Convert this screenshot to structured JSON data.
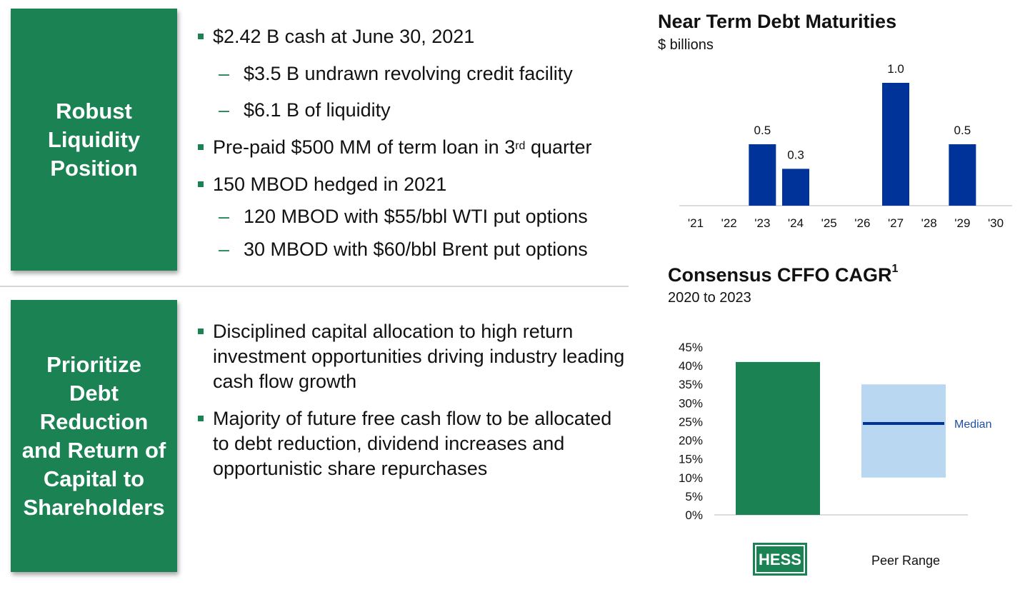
{
  "section1": {
    "box_title": [
      "Robust",
      "Liquidity",
      "Position"
    ],
    "bullets": [
      {
        "text": "$2.42 B cash at June 30, 2021"
      },
      {
        "text": "$3.5 B undrawn revolving credit facility"
      },
      {
        "text": "$6.1 B of liquidity"
      },
      {
        "text": "Pre-paid $500 MM of term loan in 3",
        "sup": "rd",
        "tail": " quarter"
      },
      {
        "text": "150 MBOD hedged in 2021"
      },
      {
        "text": "120 MBOD with $55/bbl WTI put options"
      },
      {
        "text": "30 MBOD with $60/bbl Brent put options"
      }
    ],
    "dash_glyph": "–"
  },
  "section2": {
    "box_title": [
      "Prioritize",
      "Debt",
      "Reduction",
      "and Return of",
      "Capital to",
      "Shareholders"
    ],
    "bullets": [
      [
        "Disciplined capital allocation to high return",
        "investment opportunities driving industry leading",
        "cash flow growth"
      ],
      [
        "Majority of future free cash flow to be allocated",
        "to debt reduction, dividend increases and",
        "opportunistic share repurchases"
      ]
    ]
  },
  "chart_data": [
    {
      "type": "bar",
      "title": "Near Term Debt Maturities",
      "subtitle": "$ billions",
      "categories": [
        "'21",
        "'22",
        "'23",
        "'24",
        "'25",
        "'26",
        "'27",
        "'28",
        "'29",
        "'30"
      ],
      "values": [
        0,
        0,
        0.5,
        0.3,
        0,
        0,
        1.0,
        0,
        0.5,
        0
      ],
      "data_labels": [
        "",
        "",
        "0.5",
        "0.3",
        "",
        "",
        "1.0",
        "",
        "0.5",
        ""
      ],
      "ylim": [
        0,
        1.0
      ],
      "grid": false,
      "bar_color": "#003399"
    },
    {
      "type": "bar",
      "title": "Consensus CFFO CAGR",
      "title_sup": "1",
      "subtitle": "2020 to 2023",
      "yticks": [
        "45%",
        "40%",
        "35%",
        "30%",
        "25%",
        "20%",
        "15%",
        "10%",
        "5%",
        "0%"
      ],
      "ylim": [
        0,
        45
      ],
      "grid": false,
      "categories": [
        "HESS",
        "Peer Range"
      ],
      "hess_value": 41,
      "peer_range": [
        10,
        35
      ],
      "peer_median": 24.5,
      "median_label": "Median",
      "hess_color": "#1a8253",
      "peer_color": "#bad7f2",
      "median_color": "#003399",
      "logo_text": "HESS"
    }
  ]
}
